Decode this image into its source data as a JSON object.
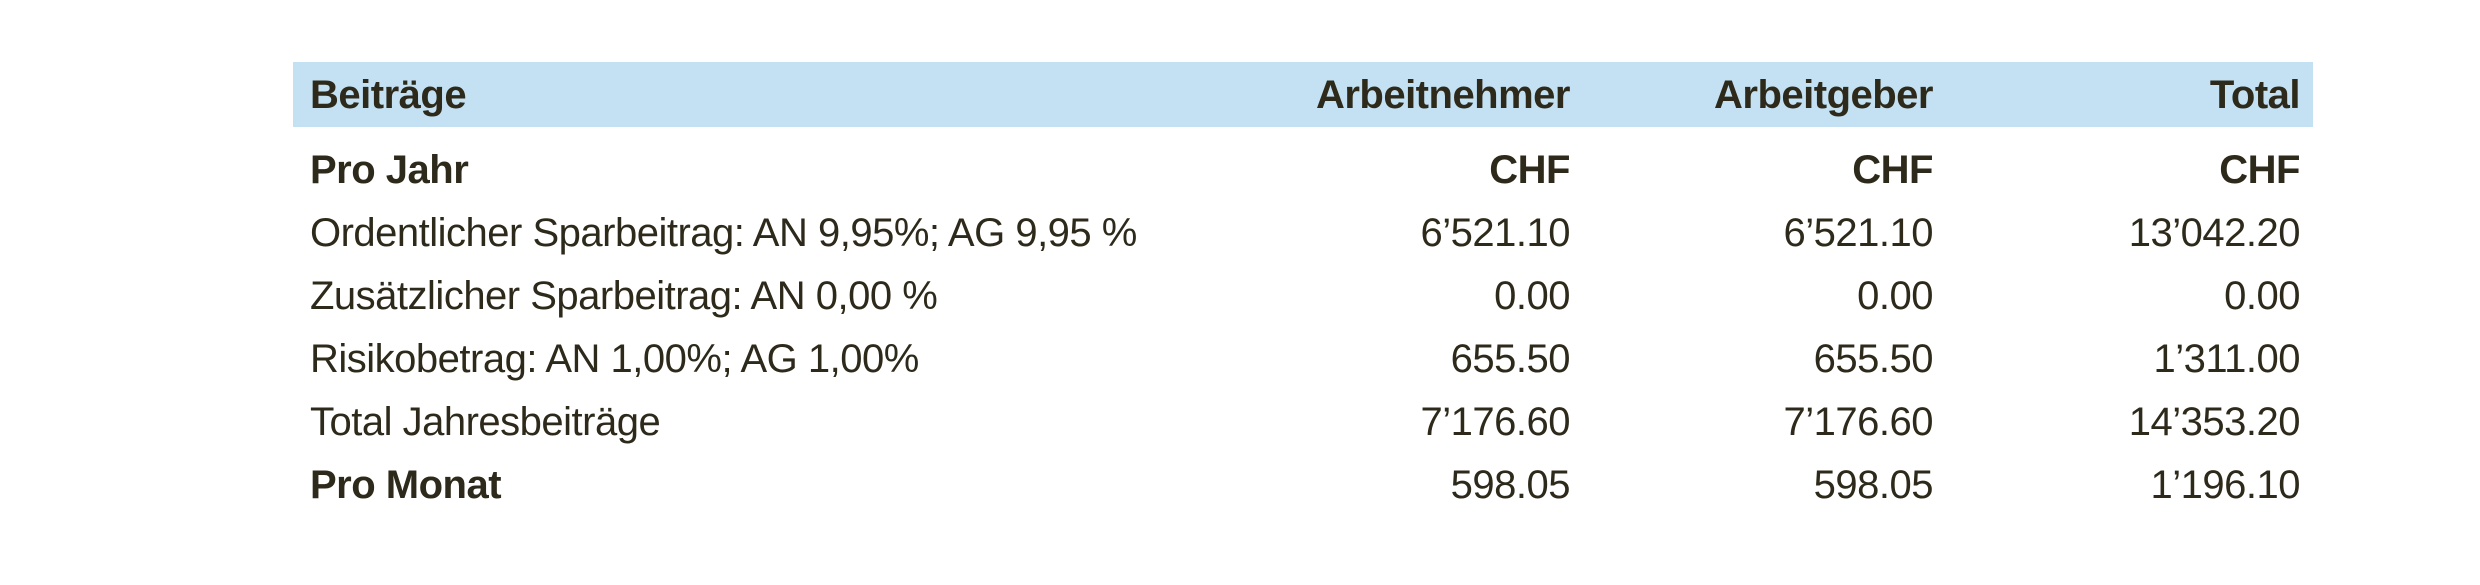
{
  "table": {
    "title": "Beiträge",
    "columns": {
      "employee": "Arbeitnehmer",
      "employer": "Arbeitgeber",
      "total": "Total"
    },
    "rows": [
      {
        "label": "Pro Jahr",
        "employee": "CHF",
        "employer": "CHF",
        "total": "CHF"
      },
      {
        "label": "Ordentlicher Sparbeitrag: AN 9,95%; AG 9,95 %",
        "employee": "6’521.10",
        "employer": "6’521.10",
        "total": "13’042.20"
      },
      {
        "label": "Zusätzlicher Sparbeitrag: AN 0,00 %",
        "employee": "0.00",
        "employer": "0.00",
        "total": "0.00"
      },
      {
        "label": "Risikobetrag: AN 1,00%; AG 1,00%",
        "employee": "655.50",
        "employer": "655.50",
        "total": "1’311.00"
      },
      {
        "label": "Total Jahresbeiträge",
        "employee": "7’176.60",
        "employer": "7’176.60",
        "total": "14’353.20"
      },
      {
        "label": "Pro Monat",
        "employee": "598.05",
        "employer": "598.05",
        "total": "1’196.10"
      }
    ],
    "colors": {
      "header_background": "#c3e1f3",
      "text": "#2e2a1b",
      "page_background": "#ffffff"
    }
  }
}
